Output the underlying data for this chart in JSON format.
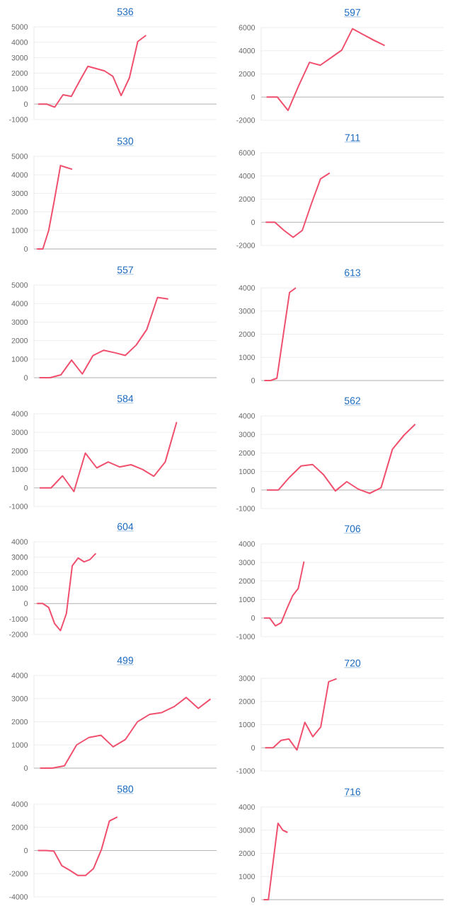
{
  "chart_data": [
    {
      "type": "line",
      "title": "536",
      "categories": [
        null,
        null,
        null,
        null,
        null,
        null,
        null,
        null,
        null,
        null,
        null,
        null,
        null,
        null,
        null,
        null,
        null,
        null,
        null,
        null,
        null,
        null
      ],
      "values": [
        0,
        0,
        -200,
        600,
        500,
        1500,
        2450,
        2300,
        2150,
        1800,
        550,
        1700,
        4050,
        4450,
        null,
        null,
        null,
        null,
        null,
        null,
        null,
        null
      ],
      "color": "#f0506e",
      "ylim": [
        -1000,
        5000
      ],
      "yticks": [
        -1000,
        0,
        1000,
        2000,
        3000,
        4000,
        5000
      ],
      "grid": "y",
      "tick_labels": "y"
    },
    {
      "type": "line",
      "title": "597",
      "categories": [
        null,
        null,
        null,
        null,
        null,
        null,
        null,
        null,
        null,
        null,
        null,
        null,
        null,
        null,
        null,
        null,
        null
      ],
      "values": [
        0,
        0,
        -1150,
        1000,
        3000,
        2750,
        3400,
        4050,
        5900,
        5400,
        4900,
        4450,
        null,
        null,
        null,
        null,
        null
      ],
      "color": "#f0506e",
      "ylim": [
        -2000,
        6000
      ],
      "yticks": [
        -2000,
        0,
        2000,
        4000,
        6000
      ],
      "grid": "y",
      "tick_labels": "y"
    },
    {
      "type": "line",
      "title": "530",
      "categories": [
        null,
        null,
        null,
        null,
        null,
        null,
        null,
        null,
        null,
        null,
        null,
        null,
        null,
        null,
        null,
        null,
        null,
        null,
        null,
        null,
        null,
        null,
        null,
        null,
        null,
        null,
        null,
        null,
        null,
        null,
        null
      ],
      "values": [
        0,
        0,
        1000,
        2700,
        4500,
        4400,
        4300,
        null,
        null,
        null,
        null,
        null,
        null,
        null,
        null,
        null,
        null,
        null,
        null,
        null,
        null,
        null,
        null,
        null,
        null,
        null,
        null,
        null,
        null,
        null,
        null
      ],
      "color": "#f0506e",
      "ylim": [
        0,
        5000
      ],
      "yticks": [
        0,
        1000,
        2000,
        3000,
        4000,
        5000
      ],
      "grid": "y",
      "tick_labels": "y"
    },
    {
      "type": "line",
      "title": "711",
      "categories": [
        null,
        null,
        null,
        null,
        null,
        null,
        null,
        null,
        null,
        null,
        null,
        null,
        null,
        null,
        null,
        null,
        null,
        null,
        null,
        null
      ],
      "values": [
        0,
        0,
        -700,
        -1300,
        -700,
        1600,
        3750,
        4250,
        null,
        null,
        null,
        null,
        null,
        null,
        null,
        null,
        null,
        null,
        null,
        null
      ],
      "color": "#f0506e",
      "ylim": [
        -2000,
        6000
      ],
      "yticks": [
        -2000,
        0,
        2000,
        4000,
        6000
      ],
      "grid": "y",
      "tick_labels": "y"
    },
    {
      "type": "line",
      "title": "557",
      "categories": [
        null,
        null,
        null,
        null,
        null,
        null,
        null,
        null,
        null,
        null,
        null,
        null,
        null,
        null,
        null,
        null,
        null
      ],
      "values": [
        0,
        0,
        150,
        950,
        200,
        1200,
        1480,
        1350,
        1200,
        1750,
        2600,
        4330,
        4250,
        null,
        null,
        null,
        null
      ],
      "color": "#f0506e",
      "ylim": [
        0,
        5000
      ],
      "yticks": [
        0,
        1000,
        2000,
        3000,
        4000,
        5000
      ],
      "grid": "y",
      "tick_labels": "y"
    },
    {
      "type": "line",
      "title": "613",
      "categories": [
        null,
        null,
        null,
        null,
        null,
        null,
        null,
        null,
        null,
        null,
        null,
        null,
        null,
        null,
        null,
        null,
        null,
        null,
        null,
        null,
        null,
        null,
        null,
        null,
        null,
        null,
        null,
        null,
        null
      ],
      "values": [
        0,
        0,
        100,
        1950,
        3800,
        4000,
        null,
        null,
        null,
        null,
        null,
        null,
        null,
        null,
        null,
        null,
        null,
        null,
        null,
        null,
        null,
        null,
        null,
        null,
        null,
        null,
        null,
        null,
        null
      ],
      "color": "#f0506e",
      "ylim": [
        0,
        4000
      ],
      "yticks": [
        0,
        1000,
        2000,
        3000,
        4000
      ],
      "grid": "y",
      "tick_labels": "y"
    },
    {
      "type": "line",
      "title": "584",
      "categories": [
        null,
        null,
        null,
        null,
        null,
        null,
        null,
        null,
        null,
        null,
        null,
        null,
        null,
        null,
        null,
        null
      ],
      "values": [
        0,
        0,
        650,
        -200,
        1880,
        1080,
        1400,
        1130,
        1250,
        1000,
        630,
        1400,
        3550,
        null,
        null,
        null
      ],
      "color": "#f0506e",
      "ylim": [
        -1000,
        4000
      ],
      "yticks": [
        -1000,
        0,
        1000,
        2000,
        3000,
        4000
      ],
      "grid": "y",
      "tick_labels": "y"
    },
    {
      "type": "line",
      "title": "562",
      "categories": [
        null,
        null,
        null,
        null,
        null,
        null,
        null,
        null,
        null,
        null,
        null,
        null,
        null,
        null,
        null,
        null
      ],
      "values": [
        0,
        0,
        700,
        1300,
        1380,
        800,
        -50,
        450,
        50,
        -180,
        120,
        2200,
        2950,
        3550,
        null,
        null
      ],
      "color": "#f0506e",
      "ylim": [
        -1000,
        4000
      ],
      "yticks": [
        -1000,
        0,
        1000,
        2000,
        3000,
        4000
      ],
      "grid": "y",
      "tick_labels": "y"
    },
    {
      "type": "line",
      "title": "604",
      "categories": [
        null,
        null,
        null,
        null,
        null,
        null,
        null,
        null,
        null,
        null,
        null,
        null,
        null,
        null,
        null,
        null,
        null,
        null,
        null,
        null,
        null,
        null,
        null,
        null,
        null,
        null,
        null,
        null,
        null,
        null,
        null
      ],
      "values": [
        0,
        0,
        -250,
        -1300,
        -1750,
        -650,
        2450,
        2950,
        2700,
        2850,
        3250,
        null,
        null,
        null,
        null,
        null,
        null,
        null,
        null,
        null,
        null,
        null,
        null,
        null,
        null,
        null,
        null,
        null,
        null,
        null,
        null
      ],
      "color": "#f0506e",
      "ylim": [
        -2000,
        4000
      ],
      "yticks": [
        -2000,
        -1000,
        0,
        1000,
        2000,
        3000,
        4000
      ],
      "grid": "y",
      "tick_labels": "y"
    },
    {
      "type": "line",
      "title": "706",
      "categories": [
        null,
        null,
        null,
        null,
        null,
        null,
        null,
        null,
        null,
        null,
        null,
        null,
        null,
        null,
        null,
        null,
        null,
        null,
        null,
        null,
        null,
        null,
        null,
        null,
        null,
        null,
        null,
        null,
        null,
        null,
        null,
        null
      ],
      "values": [
        0,
        0,
        -420,
        -250,
        500,
        1200,
        1600,
        3050,
        null,
        null,
        null,
        null,
        null,
        null,
        null,
        null,
        null,
        null,
        null,
        null,
        null,
        null,
        null,
        null,
        null,
        null,
        null,
        null,
        null,
        null,
        null,
        null
      ],
      "color": "#f0506e",
      "ylim": [
        -1000,
        4000
      ],
      "yticks": [
        -1000,
        0,
        1000,
        2000,
        3000,
        4000
      ],
      "grid": "y",
      "tick_labels": "y"
    },
    {
      "type": "line",
      "title": "499",
      "categories": [
        null,
        null,
        null,
        null,
        null,
        null,
        null,
        null,
        null,
        null,
        null,
        null,
        null,
        null,
        null
      ],
      "values": [
        0,
        0,
        100,
        1000,
        1320,
        1420,
        920,
        1230,
        2000,
        2320,
        2400,
        2650,
        3050,
        2580,
        2980
      ],
      "color": "#f0506e",
      "ylim": [
        0,
        4000
      ],
      "yticks": [
        0,
        1000,
        2000,
        3000,
        4000
      ],
      "grid": "y",
      "tick_labels": "y"
    },
    {
      "type": "line",
      "title": "720",
      "categories": [
        null,
        null,
        null,
        null,
        null,
        null,
        null,
        null,
        null,
        null,
        null,
        null,
        null,
        null,
        null,
        null,
        null,
        null,
        null,
        null,
        null,
        null,
        null
      ],
      "values": [
        0,
        0,
        320,
        380,
        -100,
        1100,
        480,
        900,
        2850,
        2980,
        null,
        null,
        null,
        null,
        null,
        null,
        null,
        null,
        null,
        null,
        null,
        null,
        null
      ],
      "color": "#f0506e",
      "ylim": [
        -1000,
        3000
      ],
      "yticks": [
        -1000,
        0,
        1000,
        2000,
        3000
      ],
      "grid": "y",
      "tick_labels": "y"
    },
    {
      "type": "line",
      "title": "580",
      "categories": [
        null,
        null,
        null,
        null,
        null,
        null,
        null,
        null,
        null,
        null,
        null,
        null,
        null,
        null,
        null,
        null,
        null,
        null,
        null,
        null,
        null,
        null,
        null
      ],
      "values": [
        0,
        0,
        -50,
        -1300,
        -1700,
        -2150,
        -2150,
        -1550,
        100,
        2550,
        2900,
        null,
        null,
        null,
        null,
        null,
        null,
        null,
        null,
        null,
        null,
        null,
        null
      ],
      "color": "#f0506e",
      "ylim": [
        -4000,
        4000
      ],
      "yticks": [
        -4000,
        -2000,
        0,
        2000,
        4000
      ],
      "grid": "y",
      "tick_labels": "y"
    },
    {
      "type": "line",
      "title": "716",
      "categories": [
        null,
        null,
        null,
        null,
        null,
        null,
        null,
        null,
        null,
        null,
        null,
        null,
        null,
        null,
        null,
        null,
        null,
        null,
        null,
        null,
        null,
        null,
        null,
        null,
        null,
        null,
        null,
        null,
        null,
        null,
        null,
        null,
        null,
        null,
        null,
        null,
        null,
        null
      ],
      "values": [
        0,
        0,
        1650,
        3300,
        3000,
        2900,
        null,
        null,
        null,
        null,
        null,
        null,
        null,
        null,
        null,
        null,
        null,
        null,
        null,
        null,
        null,
        null,
        null,
        null,
        null,
        null,
        null,
        null,
        null,
        null,
        null,
        null,
        null,
        null,
        null,
        null,
        null,
        null
      ],
      "color": "#f0506e",
      "ylim": [
        0,
        4000
      ],
      "yticks": [
        0,
        1000,
        2000,
        3000,
        4000
      ],
      "grid": "y",
      "tick_labels": "y"
    }
  ]
}
